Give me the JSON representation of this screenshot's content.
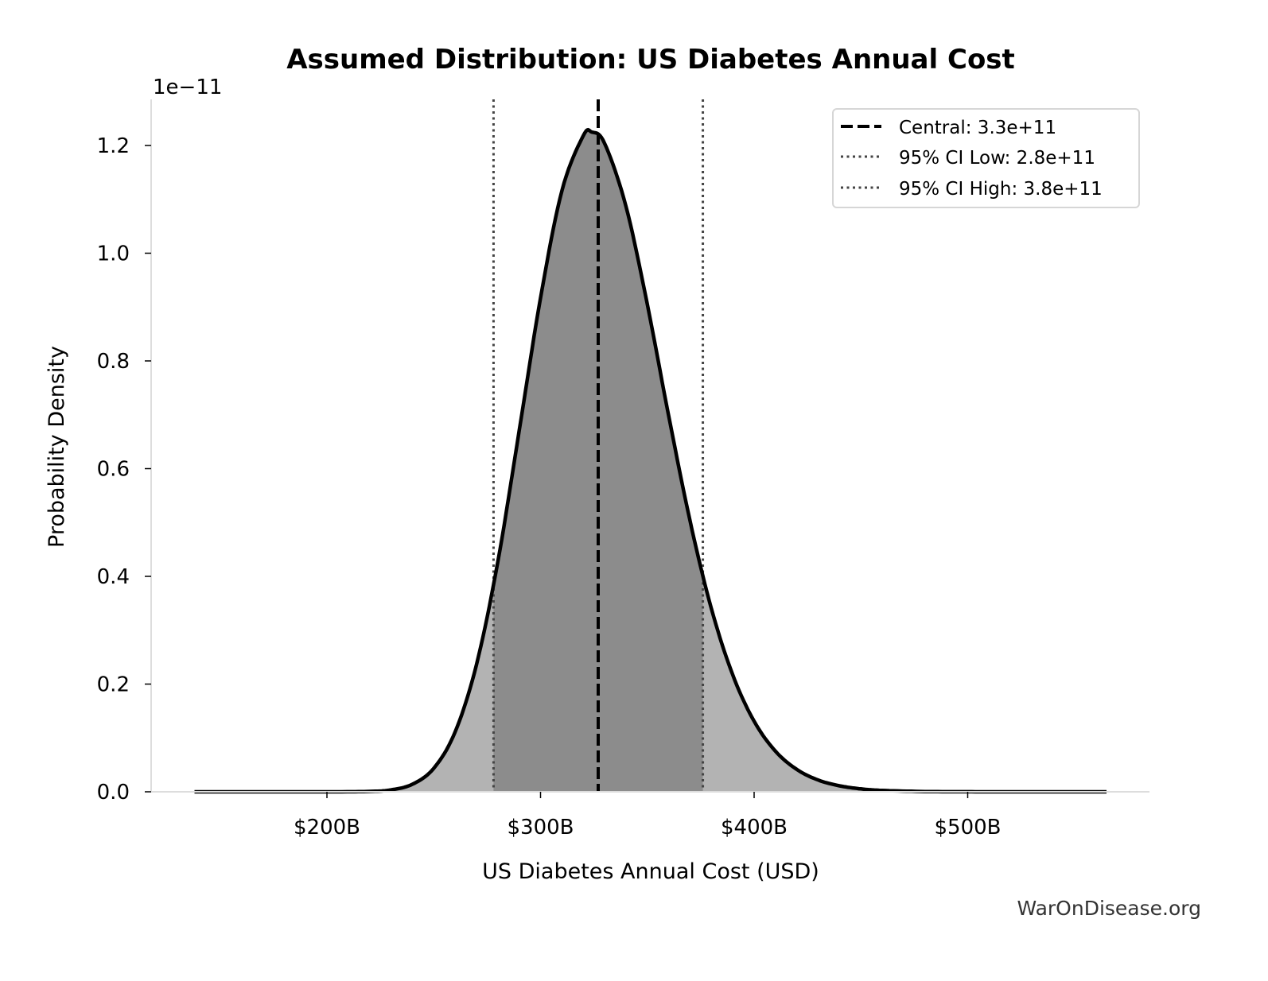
{
  "chart_data": {
    "type": "area",
    "title": "Assumed Distribution: US Diabetes Annual Cost",
    "xlabel": "US Diabetes Annual Cost (USD)",
    "ylabel": "Probability Density",
    "y_offset_label": "1e−11",
    "x_unit": "USD billions",
    "xlim": [
      118,
      585
    ],
    "ylim": [
      0,
      1.286
    ],
    "x_ticks": [
      200,
      300,
      400,
      500
    ],
    "x_tick_labels": [
      "$200B",
      "$300B",
      "$400B",
      "$500B"
    ],
    "y_ticks": [
      0.0,
      0.2,
      0.4,
      0.6,
      0.8,
      1.0,
      1.2
    ],
    "y_tick_labels": [
      "0.0",
      "0.2",
      "0.4",
      "0.6",
      "0.8",
      "1.0",
      "1.2"
    ],
    "grid": false,
    "legend_position": "top-right",
    "series": [
      {
        "x": [
          138,
          200,
          220,
          230,
          240,
          250,
          260,
          270,
          280,
          290,
          300,
          310,
          320,
          324,
          330,
          340,
          350,
          360,
          370,
          380,
          390,
          400,
          410,
          420,
          430,
          440,
          450,
          460,
          480,
          500,
          520,
          565
        ],
        "y": [
          0,
          1e-05,
          0.0007,
          0.0036,
          0.014,
          0.0436,
          0.111,
          0.236,
          0.427,
          0.67,
          0.917,
          1.116,
          1.218,
          1.225,
          1.204,
          1.087,
          0.905,
          0.698,
          0.503,
          0.34,
          0.217,
          0.131,
          0.0753,
          0.0415,
          0.0218,
          0.0111,
          0.0054,
          0.0026,
          0.0005,
          0.0001,
          2e-05,
          0
        ]
      }
    ],
    "reference_lines": [
      {
        "label": "Central: 3.3e+11",
        "x": 327,
        "style": "dashed",
        "color": "#000000"
      },
      {
        "label": "95% CI Low: 2.8e+11",
        "x": 278,
        "style": "dotted",
        "color": "#444444"
      },
      {
        "label": "95% CI High: 3.8e+11",
        "x": 376,
        "style": "dotted",
        "color": "#444444"
      }
    ],
    "colors": {
      "outer_fill": "#b3b3b3",
      "ci_fill": "#8c8c8c",
      "curve": "#000000",
      "spine": "#dddddd"
    }
  },
  "watermark": "WarOnDisease.org"
}
